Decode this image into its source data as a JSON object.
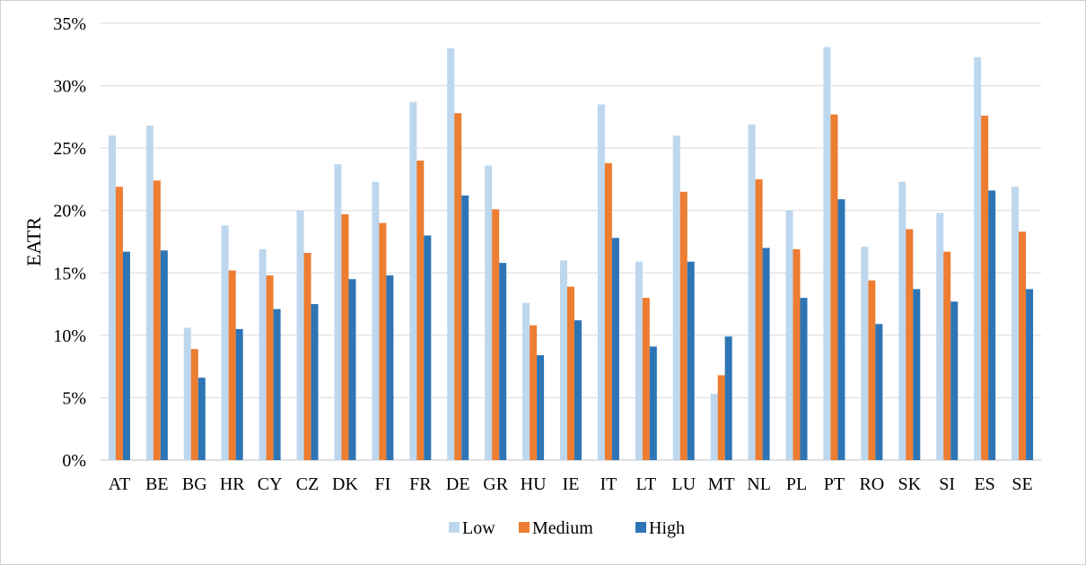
{
  "chart_data": {
    "type": "bar",
    "ylabel": "EATR",
    "xlabel": "",
    "title": "",
    "ylim": [
      0,
      35
    ],
    "y_ticks": [
      "0%",
      "5%",
      "10%",
      "15%",
      "20%",
      "25%",
      "30%",
      "35%"
    ],
    "y_tick_values": [
      0,
      5,
      10,
      15,
      20,
      25,
      30,
      35
    ],
    "grid": true,
    "legend_position": "bottom",
    "categories": [
      "AT",
      "BE",
      "BG",
      "HR",
      "CY",
      "CZ",
      "DK",
      "FI",
      "FR",
      "DE",
      "GR",
      "HU",
      "IE",
      "IT",
      "LT",
      "LU",
      "MT",
      "NL",
      "PL",
      "PT",
      "RO",
      "SK",
      "SI",
      "ES",
      "SE"
    ],
    "series": [
      {
        "name": "Low",
        "color": "#bdd7ee",
        "values": [
          26.0,
          26.8,
          10.6,
          18.8,
          16.9,
          20.0,
          23.7,
          22.3,
          28.7,
          33.0,
          23.6,
          12.6,
          16.0,
          28.5,
          15.9,
          26.0,
          5.3,
          26.9,
          20.0,
          33.1,
          17.1,
          22.3,
          19.8,
          32.3,
          21.9
        ]
      },
      {
        "name": "Medium",
        "color": "#ed7d31",
        "values": [
          21.9,
          22.4,
          8.9,
          15.2,
          14.8,
          16.6,
          19.7,
          19.0,
          24.0,
          27.8,
          20.1,
          10.8,
          13.9,
          23.8,
          13.0,
          21.5,
          6.8,
          22.5,
          16.9,
          27.7,
          14.4,
          18.5,
          16.7,
          27.6,
          18.3
        ]
      },
      {
        "name": "High",
        "color": "#2e75b6",
        "values": [
          16.7,
          16.8,
          6.6,
          10.5,
          12.1,
          12.5,
          14.5,
          14.8,
          18.0,
          21.2,
          15.8,
          8.4,
          11.2,
          17.8,
          9.1,
          15.9,
          9.9,
          17.0,
          13.0,
          20.9,
          10.9,
          13.7,
          12.7,
          21.6,
          13.7
        ]
      }
    ]
  }
}
